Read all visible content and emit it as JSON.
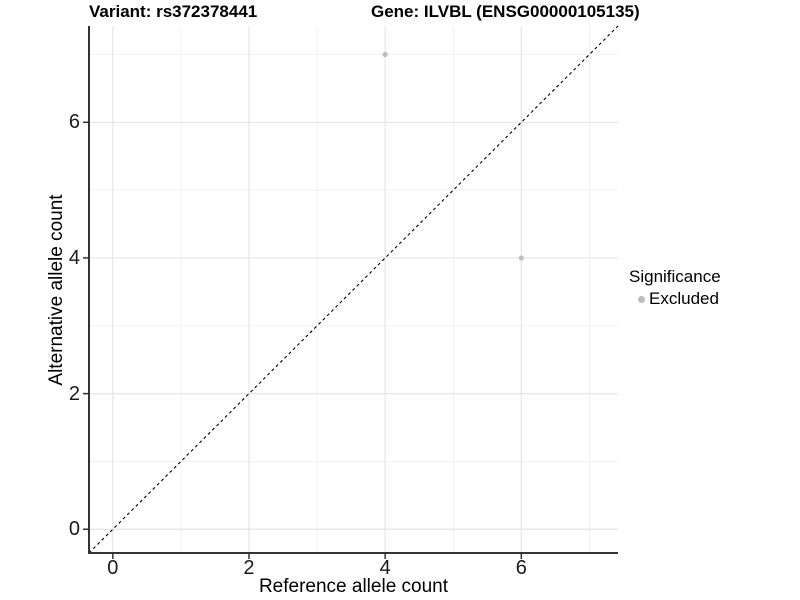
{
  "chart_data": {
    "type": "scatter",
    "title_left": "Variant: rs372378441",
    "title_right": "Gene: ILVBL (ENSG00000105135)",
    "xlabel": "Reference allele count",
    "ylabel": "Alternative allele count",
    "xlim": [
      -0.35,
      7.42
    ],
    "ylim": [
      -0.35,
      7.42
    ],
    "xticks": [
      0,
      2,
      4,
      6
    ],
    "yticks": [
      0,
      2,
      4,
      6
    ],
    "grid_major": [
      0,
      2,
      4,
      6
    ],
    "grid_minor": [
      1,
      3,
      5,
      7
    ],
    "grid": true,
    "legend_position": "right",
    "series": [
      {
        "name": "Excluded",
        "color": "#bebebe",
        "points": [
          {
            "x": 4,
            "y": 7
          },
          {
            "x": 6,
            "y": 4
          }
        ]
      }
    ],
    "reference_line": {
      "kind": "identity",
      "style": "dashed",
      "color": "#000000"
    },
    "legend": {
      "title": "Significance",
      "items": [
        {
          "label": "Excluded",
          "color": "#bebebe"
        }
      ]
    },
    "colors": {
      "background": "#ffffff",
      "point": "#bebebe",
      "grid_major": "#e5e5e5",
      "grid_minor": "#f0f0f0",
      "axis": "#333333",
      "diagonal": "#000000"
    }
  }
}
